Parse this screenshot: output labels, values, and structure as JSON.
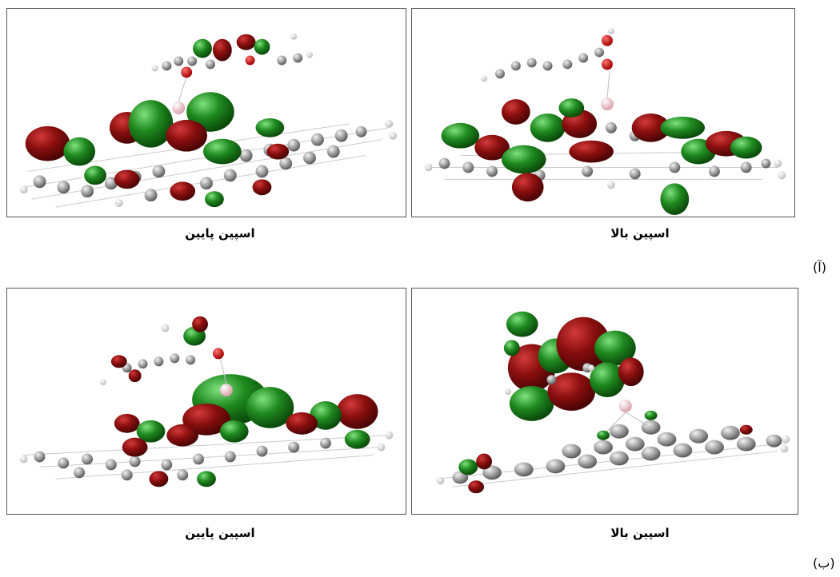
{
  "figure": {
    "row_a": {
      "label": "(آ)",
      "left_caption": "اسپین پایین",
      "right_caption": "اسپین بالا"
    },
    "row_b": {
      "label": "(ب)",
      "left_caption": "اسپین پایین",
      "right_caption": "اسپین بالا"
    }
  },
  "colors": {
    "orbital_positive": "#8b0f0f",
    "orbital_negative": "#1f8a1f",
    "carbon_atom": "#9a9a9a",
    "hydrogen_atom": "#e6e6e6",
    "oxygen_atom": "#e00000",
    "boron_atom": "#f2c6cc",
    "bond": "#bdbdbd"
  }
}
